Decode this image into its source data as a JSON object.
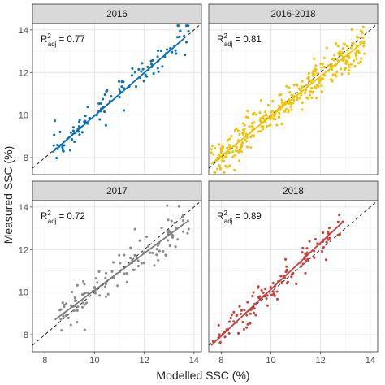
{
  "chart_data": {
    "type": "scatter",
    "xlabel": "Modelled SSC (%)",
    "ylabel": "Measured SSC (%)",
    "xlim": [
      7.5,
      14.3
    ],
    "ylim": [
      7.2,
      14.3
    ],
    "x_ticks": [
      8,
      10,
      12,
      14
    ],
    "y_ticks": [
      8,
      10,
      12,
      14
    ],
    "grid": true,
    "reference_line": "1:1 dashed",
    "panels": [
      {
        "title": "2016",
        "r2_prefix": "R",
        "r2_sup": "2",
        "r2_sub": "adj",
        "r2_value": "= 0.77",
        "color": "#0b6fb8",
        "n_points": 110,
        "x_range": [
          8.3,
          13.8
        ],
        "fit": [
          [
            8.3,
            8.25
          ],
          [
            13.6,
            13.6
          ]
        ],
        "scatter_sd": 0.45
      },
      {
        "title": "2016-2018",
        "r2_prefix": "R",
        "r2_sup": "2",
        "r2_sub": "adj",
        "r2_value": "= 0.81",
        "color": "#f2c200",
        "n_points": 330,
        "x_range": [
          7.6,
          13.8
        ],
        "fit": [
          [
            7.6,
            7.7
          ],
          [
            13.8,
            13.5
          ]
        ],
        "scatter_sd": 0.42
      },
      {
        "title": "2017",
        "r2_prefix": "R",
        "r2_sup": "2",
        "r2_sub": "adj",
        "r2_value": "= 0.72",
        "color": "#8a8a8a",
        "line_color": "#7a7a7a",
        "n_points": 120,
        "x_range": [
          8.4,
          13.8
        ],
        "fit": [
          [
            8.4,
            8.7
          ],
          [
            13.7,
            13.3
          ]
        ],
        "scatter_sd": 0.5
      },
      {
        "title": "2018",
        "r2_prefix": "R",
        "r2_sup": "2",
        "r2_sub": "adj",
        "r2_value": "= 0.89",
        "color": "#c8413b",
        "n_points": 120,
        "x_range": [
          7.6,
          12.9
        ],
        "fit": [
          [
            7.6,
            7.5
          ],
          [
            12.9,
            13.3
          ]
        ],
        "scatter_sd": 0.35
      }
    ]
  }
}
